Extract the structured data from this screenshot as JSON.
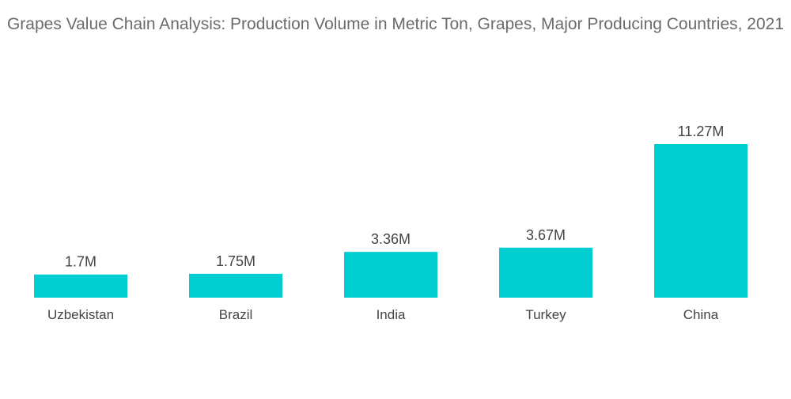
{
  "chart_data": {
    "type": "bar",
    "title": "Grapes Value Chain Analysis: Production Volume in Metric Ton, Grapes, Major Producing Countries, 2021",
    "categories": [
      "Uzbekistan",
      "Brazil",
      "India",
      "Turkey",
      "China"
    ],
    "values": [
      1.7,
      1.75,
      3.36,
      3.67,
      11.27
    ],
    "data_labels": [
      "1.7M",
      "1.75M",
      "3.36M",
      "3.67M",
      "11.27M"
    ],
    "unit": "M",
    "xlabel": "",
    "ylabel": "",
    "ylim": [
      0,
      11.27
    ],
    "grid": false,
    "legend": "none",
    "colors": {
      "bar": "#00CED1"
    }
  }
}
